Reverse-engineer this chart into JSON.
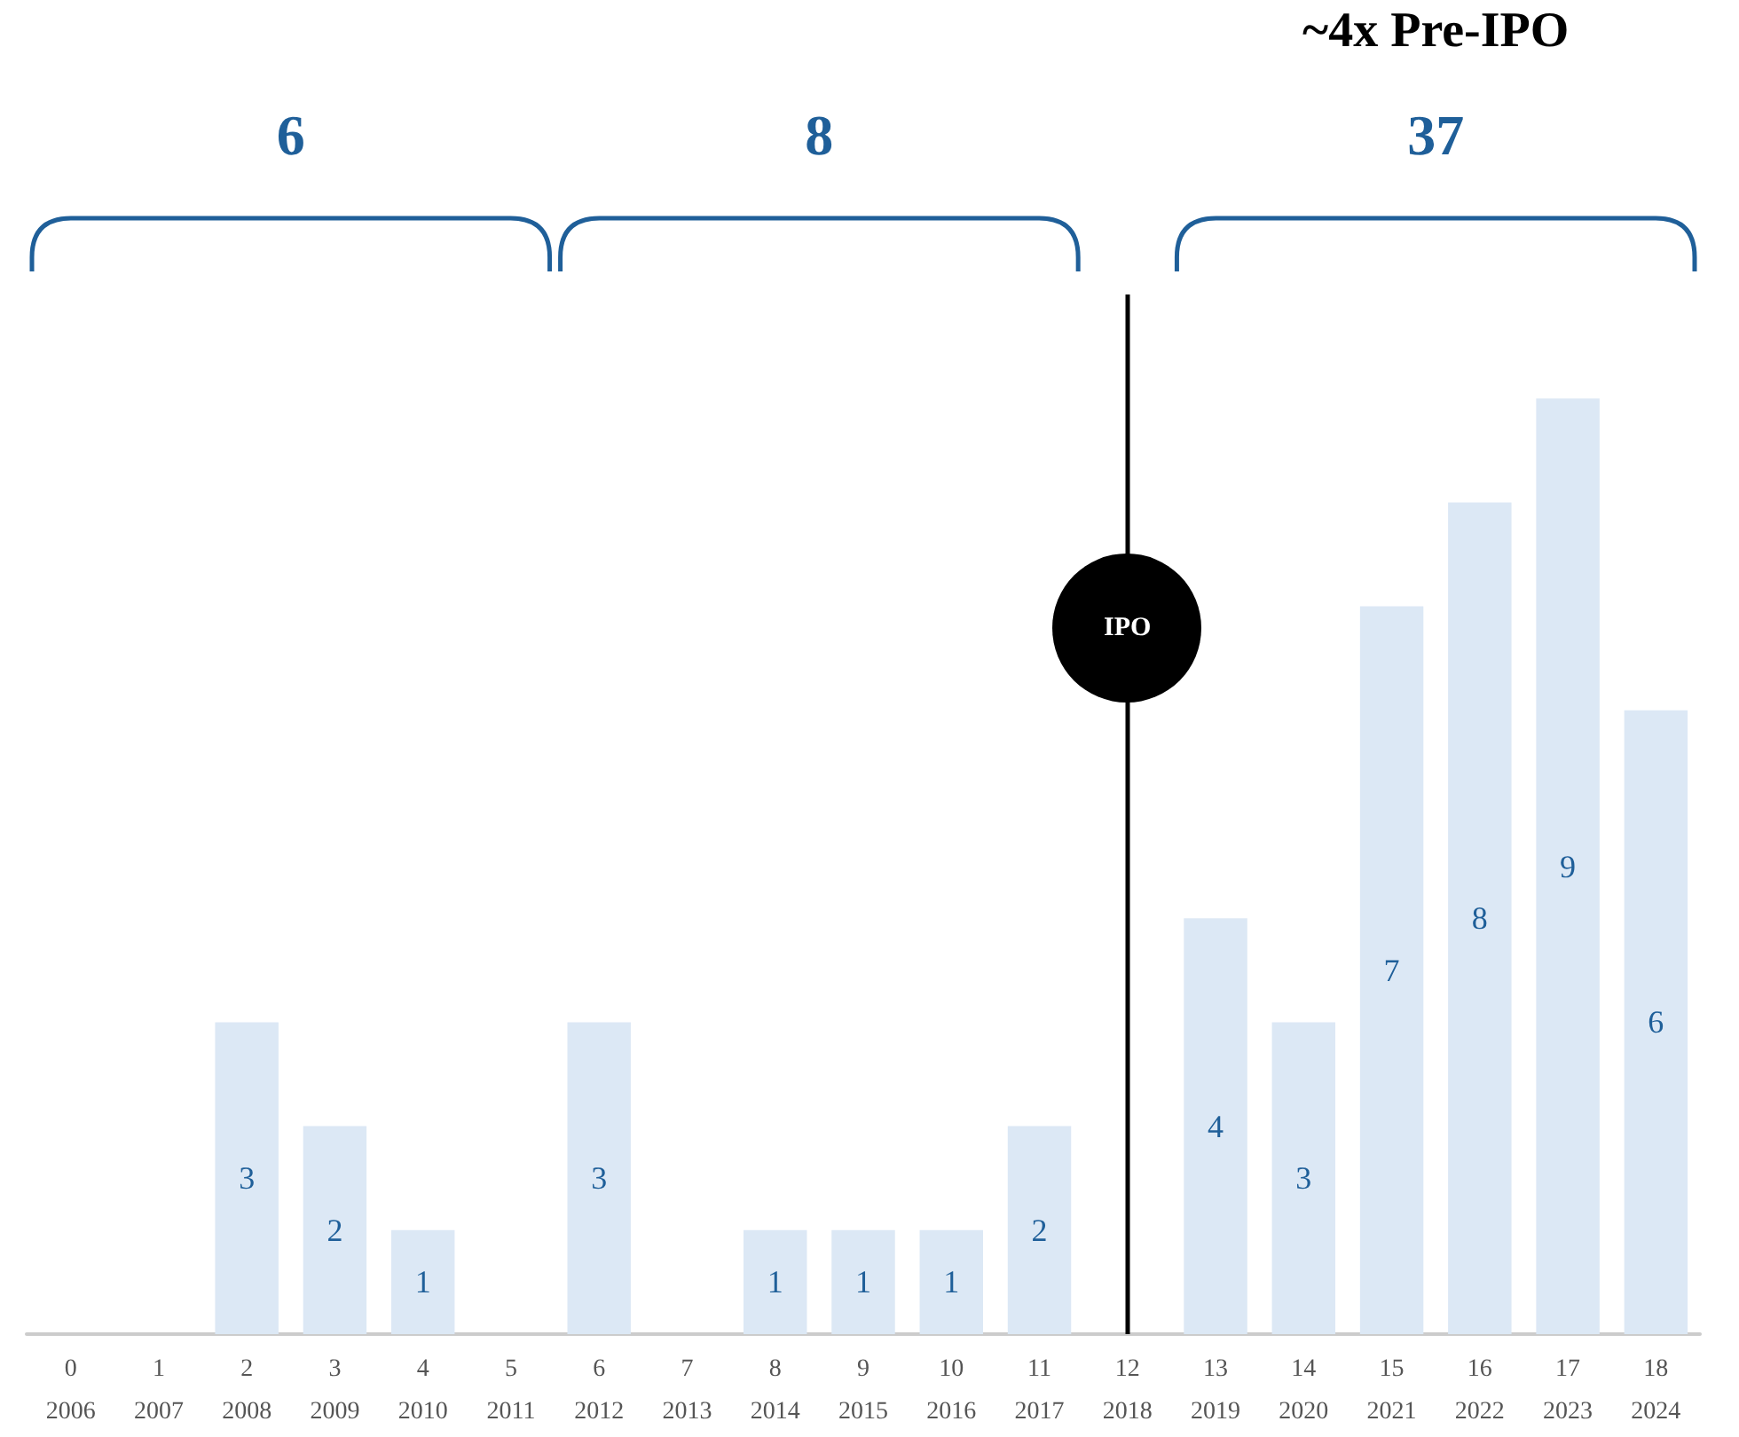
{
  "chart_data": {
    "type": "bar",
    "categories": [
      "0\n2006",
      "1\n2007",
      "2\n2008",
      "3\n2009",
      "4\n2010",
      "5\n2011",
      "6\n2012",
      "7\n2013",
      "8\n2014",
      "9\n2015",
      "10\n2016",
      "11\n2017",
      "12\n2018",
      "13\n2019",
      "14\n2020",
      "15\n2021",
      "16\n2022",
      "17\n2023",
      "18\n2024"
    ],
    "values": [
      0,
      0,
      3,
      2,
      1,
      0,
      3,
      0,
      1,
      1,
      1,
      2,
      0,
      4,
      3,
      7,
      8,
      9,
      6
    ],
    "value_labels": [
      null,
      null,
      "3",
      "2",
      "1",
      null,
      "3",
      null,
      "1",
      "1",
      "1",
      "2",
      null,
      "4",
      "3",
      "7",
      "8",
      "9",
      "6"
    ],
    "color": "#dce8f5",
    "ref_lines": [
      {
        "axis": "x",
        "value": "12\n2018",
        "label": "IPO",
        "color": "#000000"
      }
    ],
    "annotations": [
      "6",
      "8",
      "37",
      "~4x Pre-IPO"
    ]
  }
}
